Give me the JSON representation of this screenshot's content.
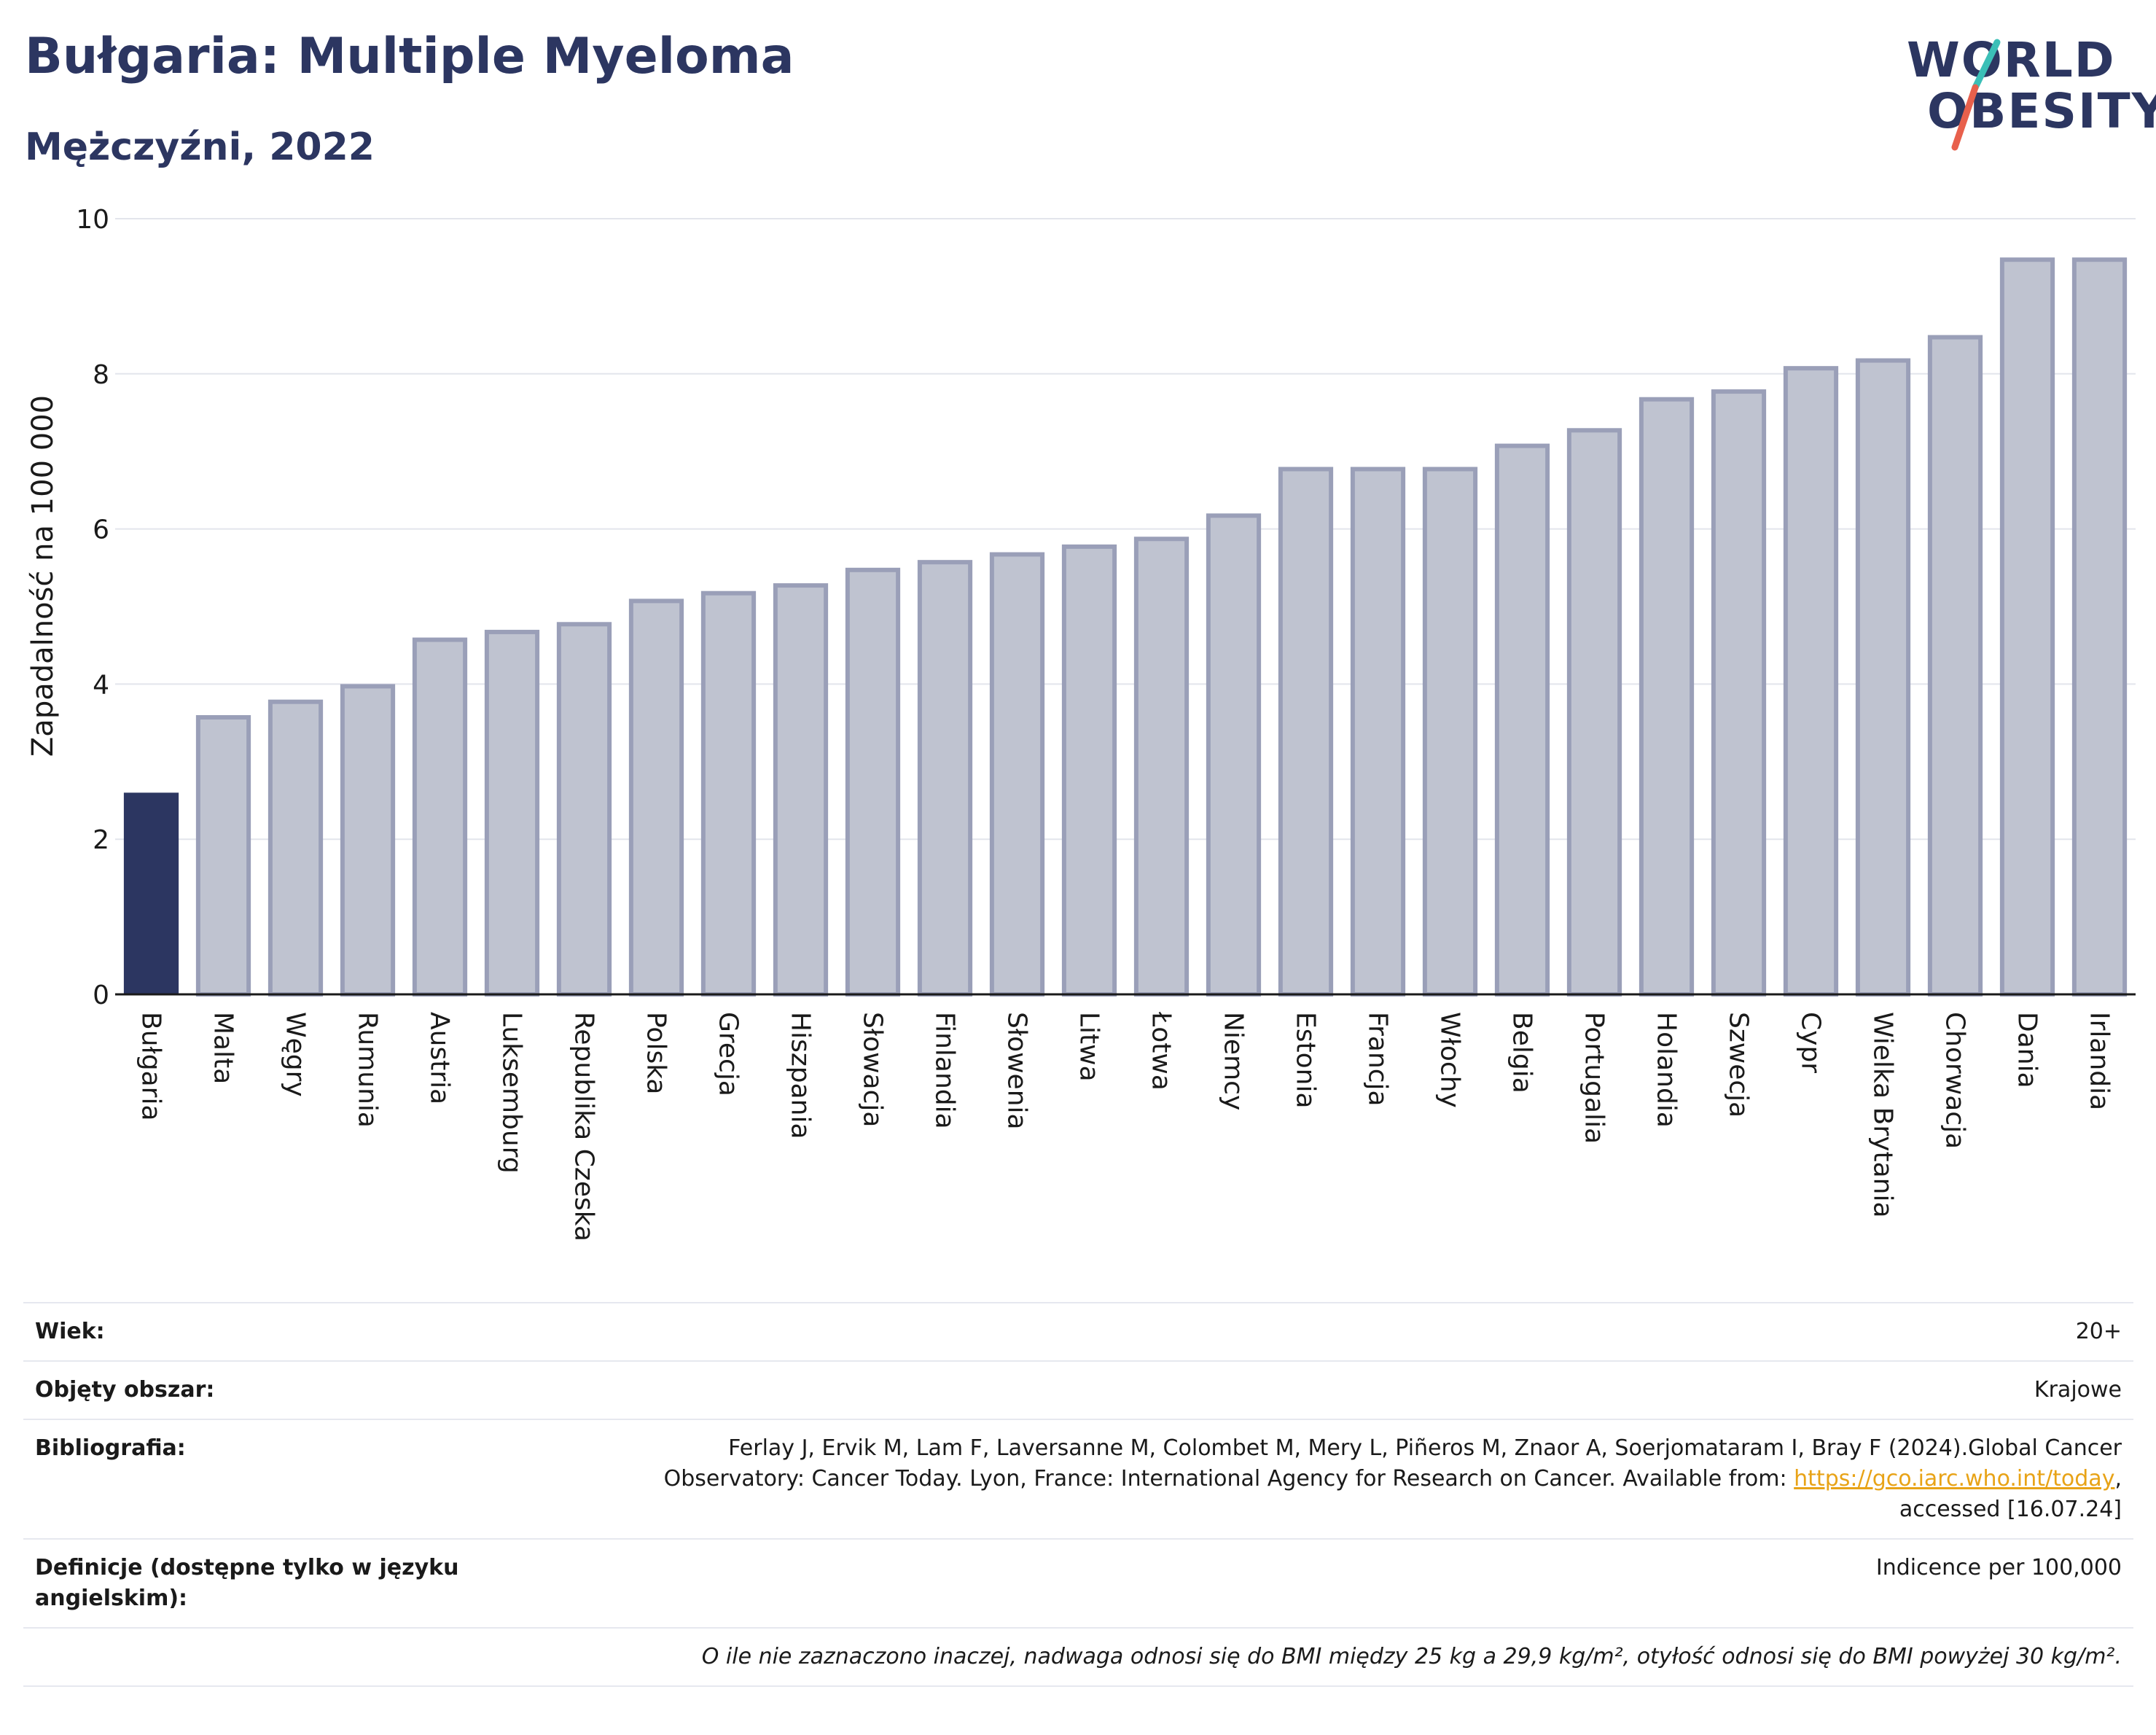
{
  "header": {
    "title": "Bułgaria: Multiple Myeloma",
    "subtitle": "Mężczyźni, 2022"
  },
  "logo": {
    "line1": "WORLD",
    "line2": "OBESITY"
  },
  "colors": {
    "highlight_bar": "#2c3661",
    "other_bar_fill": "#bfc3d0",
    "other_bar_stroke": "#9a9fb8",
    "title_text": "#2c3661",
    "link": "#e8a317"
  },
  "chart_data": {
    "type": "bar",
    "title": "Bułgaria: Multiple Myeloma",
    "subtitle": "Mężczyźni, 2022",
    "ylabel": "Zapadalność na 100 000",
    "xlabel": "",
    "ylim": [
      0,
      10
    ],
    "yticks": [
      0,
      2,
      4,
      6,
      8,
      10
    ],
    "grid": true,
    "highlight": "Bułgaria",
    "categories": [
      "Bułgaria",
      "Malta",
      "Węgry",
      "Rumunia",
      "Austria",
      "Luksemburg",
      "Republika Czeska",
      "Polska",
      "Grecja",
      "Hiszpania",
      "Słowacja",
      "Finlandia",
      "Słowenia",
      "Litwa",
      "Łotwa",
      "Niemcy",
      "Estonia",
      "Francja",
      "Włochy",
      "Belgia",
      "Portugalia",
      "Holandia",
      "Szwecja",
      "Cypr",
      "Wielka Brytania",
      "Chorwacja",
      "Dania",
      "Irlandia"
    ],
    "values": [
      2.6,
      3.6,
      3.8,
      4.0,
      4.6,
      4.7,
      4.8,
      5.1,
      5.2,
      5.3,
      5.5,
      5.6,
      5.7,
      5.8,
      5.9,
      6.2,
      6.8,
      6.8,
      6.8,
      7.1,
      7.3,
      7.7,
      7.8,
      8.1,
      8.2,
      8.5,
      9.5,
      9.5
    ]
  },
  "info": {
    "age_key": "Wiek:",
    "age_val": "20+",
    "area_key": "Objęty obszar:",
    "area_val": "Krajowe",
    "biblio_key": "Bibliografia:",
    "biblio_line1": "Ferlay J, Ervik M, Lam F, Laversanne M, Colombet M, Mery L, Piñeros M, Znaor A, Soerjomataram I, Bray F (2024).Global Cancer",
    "biblio_line2_pre": "Observatory: Cancer Today. Lyon, France: International Agency for Research on Cancer. Available from: ",
    "biblio_link": "https://gco.iarc.who.int/today",
    "biblio_line2_post": ",",
    "biblio_line3": "accessed [16.07.24]",
    "def_key": "Definicje (dostępne tylko w języku angielskim):",
    "def_val": "Indicence per 100,000",
    "note": "O ile nie zaznaczono inaczej, nadwaga odnosi się do BMI między 25 kg a 29,9 kg/m², otyłość odnosi się do BMI powyżej 30 kg/m²."
  }
}
